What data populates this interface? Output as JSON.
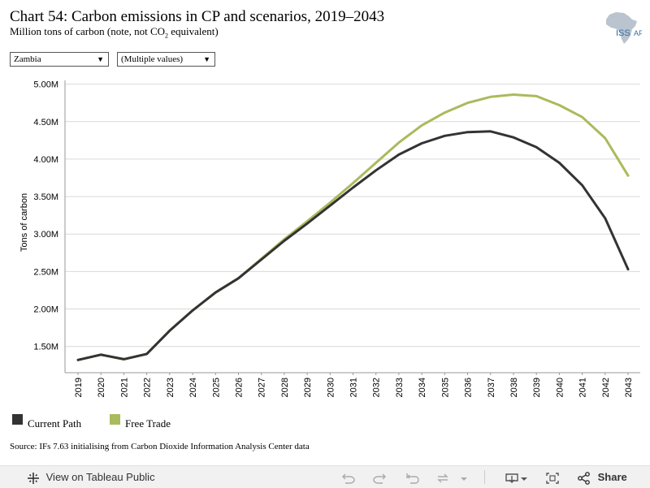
{
  "header": {
    "title": "Chart 54: Carbon emissions in CP and scenarios, 2019–2043",
    "subtitle_pre": "Million tons of carbon (note, not CO",
    "subtitle_sub": "2",
    "subtitle_post": " equivalent)",
    "logo_text_main": "ISS",
    "logo_text_side": "AF"
  },
  "filters": {
    "country": "Zambia",
    "scenario": "(Multiple values)"
  },
  "chart_data": {
    "type": "line",
    "ylabel": "Tons of carbon",
    "xlabel": "",
    "x": [
      "2019",
      "2020",
      "2021",
      "2022",
      "2023",
      "2024",
      "2025",
      "2026",
      "2027",
      "2028",
      "2029",
      "2030",
      "2031",
      "2032",
      "2033",
      "2034",
      "2035",
      "2036",
      "2037",
      "2038",
      "2039",
      "2040",
      "2041",
      "2042",
      "2043"
    ],
    "y_ticks": [
      1500000,
      2000000,
      2500000,
      3000000,
      3500000,
      4000000,
      4500000,
      5000000
    ],
    "y_tick_labels": [
      "1.50M",
      "2.00M",
      "2.50M",
      "3.00M",
      "3.50M",
      "4.00M",
      "4.50M",
      "5.00M"
    ],
    "ylim": [
      1150000,
      5050000
    ],
    "grid": true,
    "legend_position": "bottom-left",
    "series": [
      {
        "name": "Current Path",
        "color": "#333333",
        "values": [
          1320000,
          1390000,
          1330000,
          1400000,
          1710000,
          1980000,
          2220000,
          2410000,
          2660000,
          2910000,
          3140000,
          3380000,
          3620000,
          3850000,
          4060000,
          4210000,
          4310000,
          4360000,
          4370000,
          4290000,
          4160000,
          3950000,
          3650000,
          3210000,
          2530000
        ]
      },
      {
        "name": "Free Trade",
        "color": "#a9bb5c",
        "values": [
          1320000,
          1390000,
          1330000,
          1400000,
          1710000,
          1980000,
          2220000,
          2410000,
          2670000,
          2930000,
          3170000,
          3420000,
          3680000,
          3950000,
          4220000,
          4450000,
          4620000,
          4750000,
          4830000,
          4860000,
          4840000,
          4720000,
          4560000,
          4280000,
          3780000
        ]
      }
    ]
  },
  "source": "Source: IFs 7.63 initialising from Carbon Dioxide Information Analysis Center data",
  "toolbar": {
    "view_label": "View on Tableau Public",
    "share_label": "Share"
  }
}
